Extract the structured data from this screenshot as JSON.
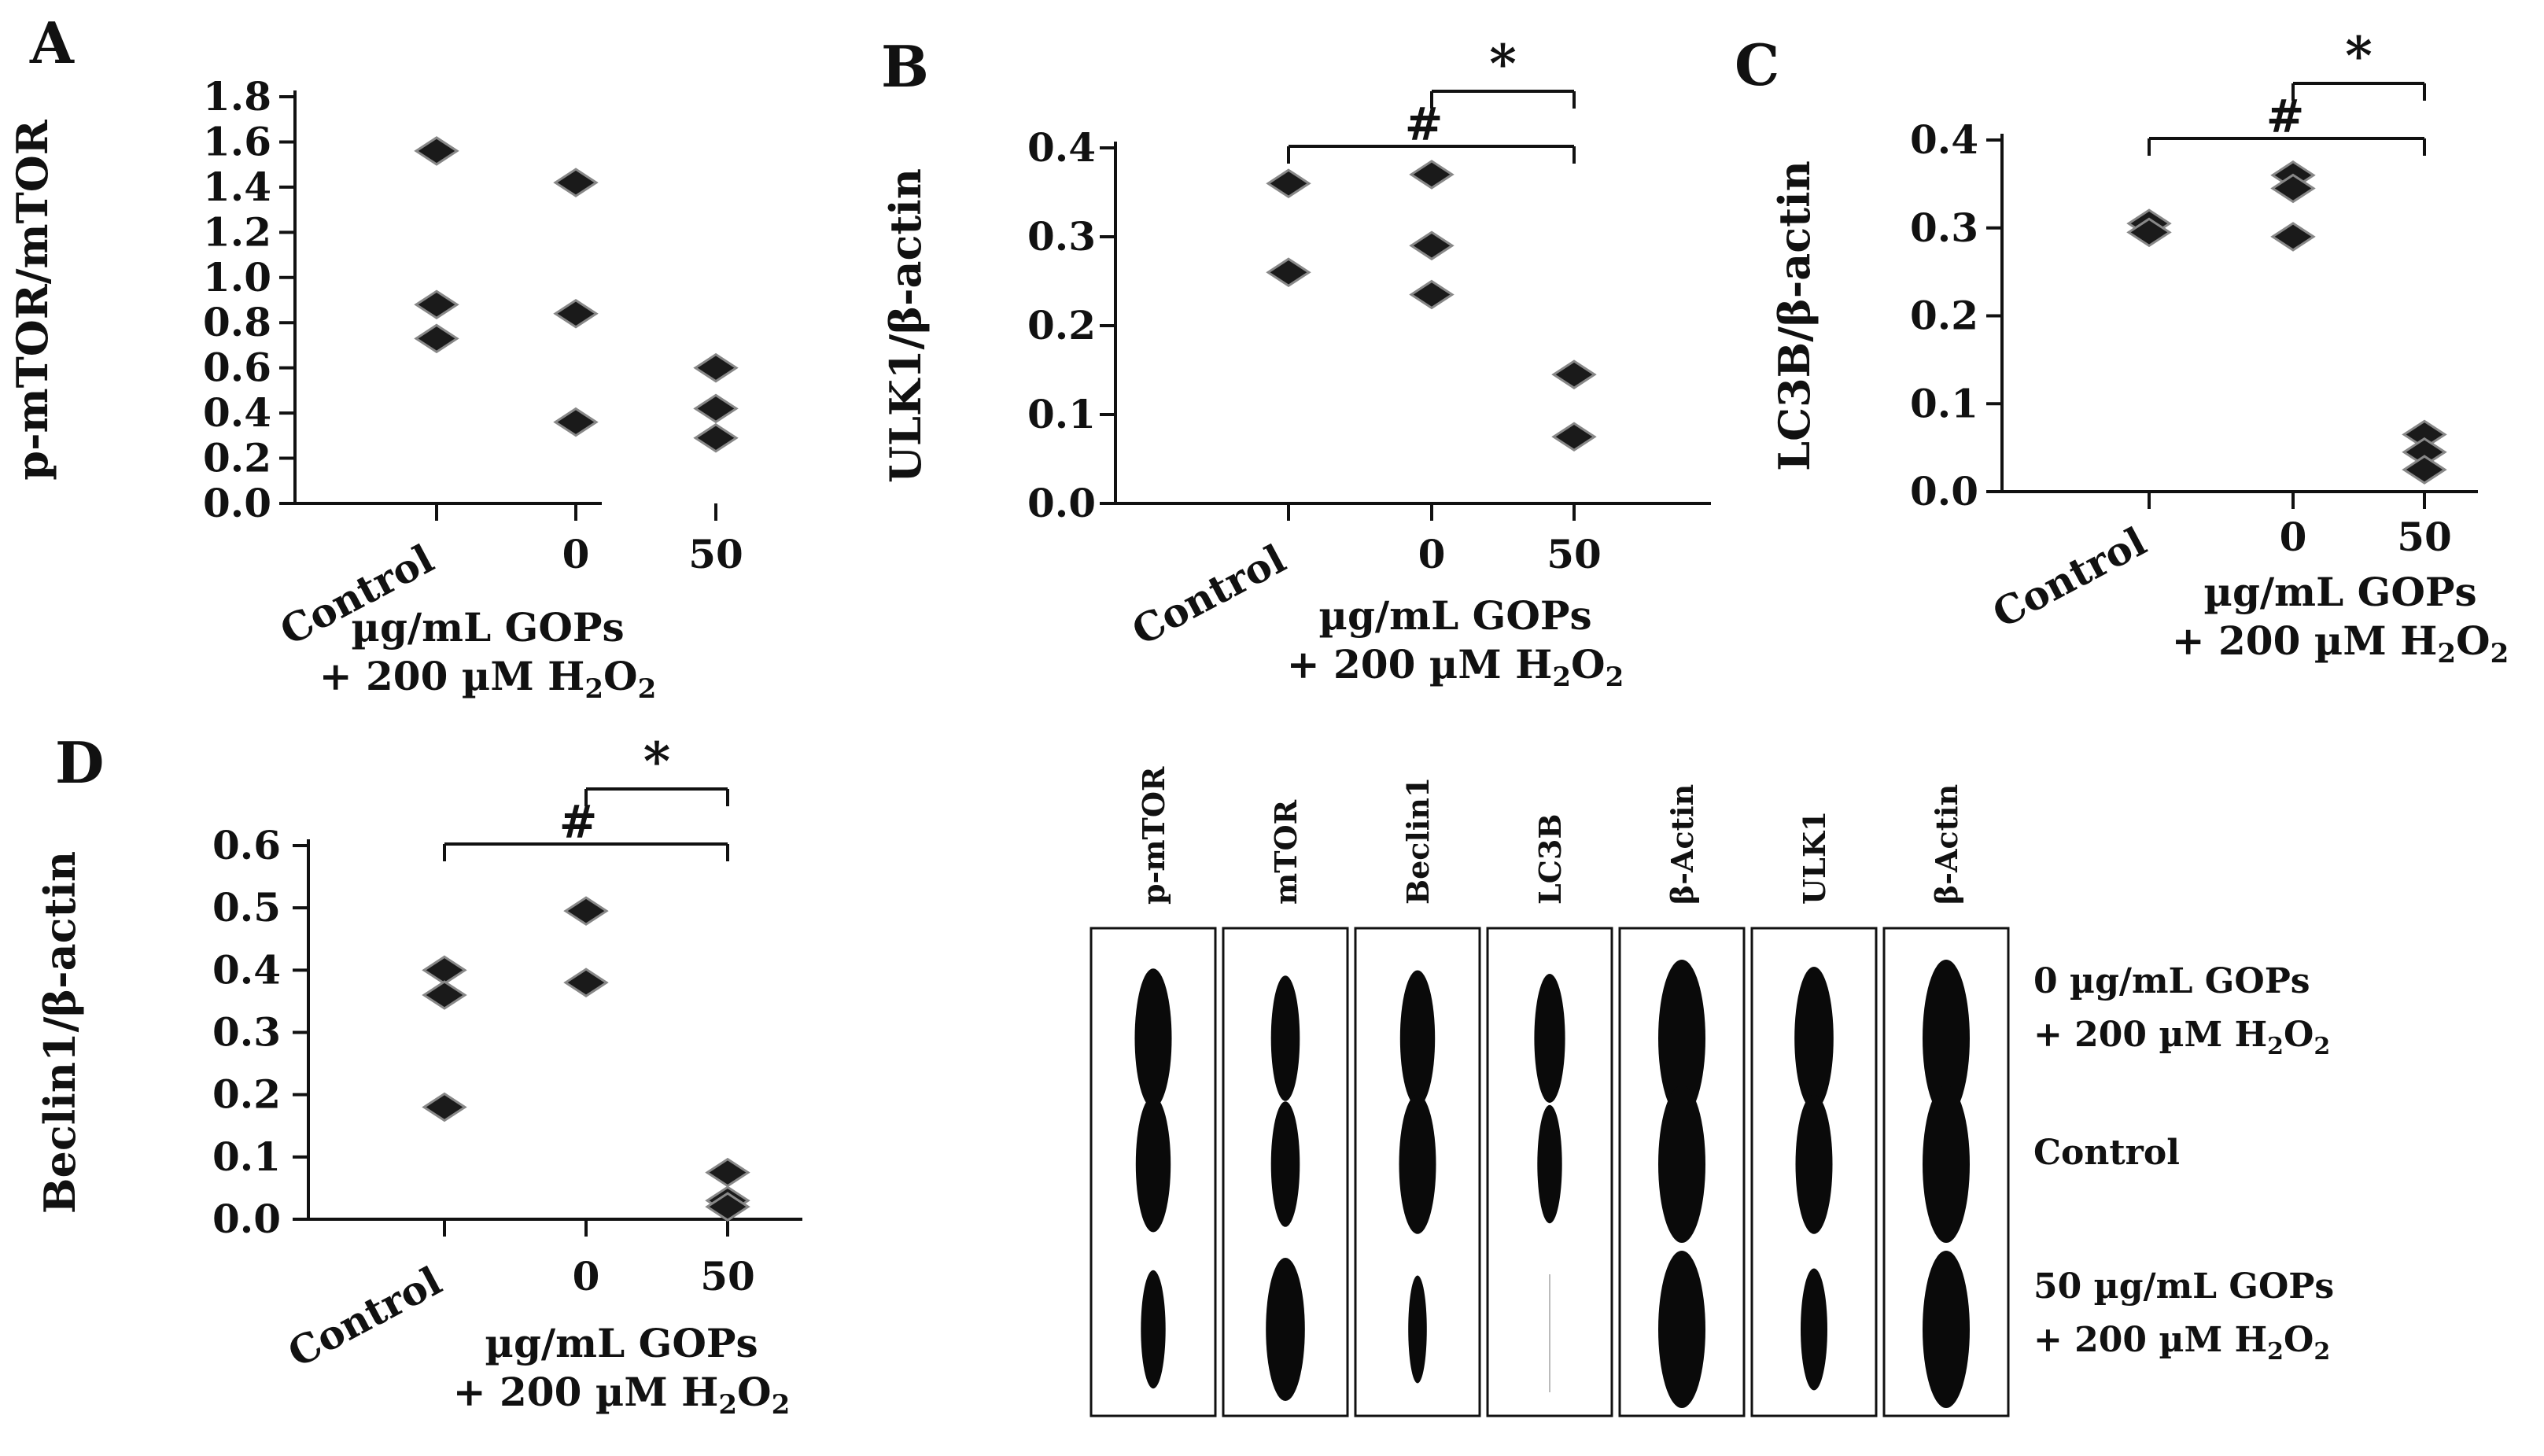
{
  "colors": {
    "ink": "#111111",
    "marker": "#1a1a1a",
    "marker_edge": "#888888",
    "band": "#0a0a0a"
  },
  "x_categories": [
    "Control",
    "0",
    "50"
  ],
  "x_caption": {
    "line1": "µg/mL GOPs",
    "line2_prefix": "+ 200 µM H",
    "sub1": "2",
    "mid": "O",
    "sub2": "2"
  },
  "chart_data": [
    {
      "panel": "A",
      "type": "scatter",
      "ylabel": "p-mTOR/mTOR",
      "ylim": [
        0,
        1.8
      ],
      "yticks": [
        "0.0",
        "0.2",
        "0.4",
        "0.6",
        "0.8",
        "1.0",
        "1.2",
        "1.4",
        "1.6",
        "1.8"
      ],
      "series": [
        {
          "name": "Control",
          "values": [
            1.56,
            0.88,
            0.73
          ]
        },
        {
          "name": "0",
          "values": [
            1.42,
            0.84,
            0.36
          ]
        },
        {
          "name": "50",
          "values": [
            0.6,
            0.42,
            0.29
          ]
        }
      ],
      "annotations": []
    },
    {
      "panel": "B",
      "type": "scatter",
      "ylabel": "ULK1/β-actin",
      "ylim": [
        0,
        0.4
      ],
      "yticks": [
        "0.0",
        "0.1",
        "0.2",
        "0.3",
        "0.4"
      ],
      "series": [
        {
          "name": "Control",
          "values": [
            0.36,
            0.26
          ]
        },
        {
          "name": "0",
          "values": [
            0.37,
            0.29,
            0.235
          ]
        },
        {
          "name": "50",
          "values": [
            0.145,
            0.075
          ]
        }
      ],
      "annotations": [
        {
          "symbol": "#",
          "from": 0,
          "to": 2
        },
        {
          "symbol": "*",
          "from": 1,
          "to": 2
        }
      ]
    },
    {
      "panel": "C",
      "type": "scatter",
      "ylabel": "LC3B/β-actin",
      "ylim": [
        0,
        0.4
      ],
      "yticks": [
        "0.0",
        "0.1",
        "0.2",
        "0.3",
        "0.4"
      ],
      "series": [
        {
          "name": "Control",
          "values": [
            0.305,
            0.295
          ]
        },
        {
          "name": "0",
          "values": [
            0.36,
            0.345,
            0.29
          ]
        },
        {
          "name": "50",
          "values": [
            0.065,
            0.045,
            0.025
          ]
        }
      ],
      "annotations": [
        {
          "symbol": "#",
          "from": 0,
          "to": 2
        },
        {
          "symbol": "*",
          "from": 1,
          "to": 2
        }
      ]
    },
    {
      "panel": "D",
      "type": "scatter",
      "ylabel": "Beclin1/β-actin",
      "ylim": [
        0,
        0.6
      ],
      "yticks": [
        "0.0",
        "0.1",
        "0.2",
        "0.3",
        "0.4",
        "0.5",
        "0.6"
      ],
      "series": [
        {
          "name": "Control",
          "values": [
            0.4,
            0.36,
            0.18
          ]
        },
        {
          "name": "0",
          "values": [
            0.495,
            0.38
          ]
        },
        {
          "name": "50",
          "values": [
            0.075,
            0.03,
            0.02
          ]
        }
      ],
      "annotations": [
        {
          "symbol": "#",
          "from": 0,
          "to": 2
        },
        {
          "symbol": "*",
          "from": 1,
          "to": 2
        }
      ]
    }
  ],
  "blot": {
    "lanes": [
      "p-mTOR",
      "mTOR",
      "Beclin1",
      "LC3B",
      "β-Actin",
      "ULK1",
      "β-Actin"
    ],
    "row_labels": [
      {
        "line1": "0 µg/mL GOPs",
        "line2_prefix": "+ 200 µM H",
        "sub1": "2",
        "mid": "O",
        "sub2": "2"
      },
      {
        "line1": "Control"
      },
      {
        "line1": "50 µg/mL GOPs",
        "line2_prefix": "+ 200 µM H",
        "sub1": "2",
        "mid": "O",
        "sub2": "2"
      }
    ],
    "band_intensity": [
      [
        0.75,
        0.7,
        0.45
      ],
      [
        0.55,
        0.55,
        0.8
      ],
      [
        0.7,
        0.75,
        0.3
      ],
      [
        0.6,
        0.45,
        0.05
      ],
      [
        1.0,
        1.0,
        1.0
      ],
      [
        0.8,
        0.75,
        0.5
      ],
      [
        1.0,
        1.0,
        1.0
      ]
    ]
  }
}
